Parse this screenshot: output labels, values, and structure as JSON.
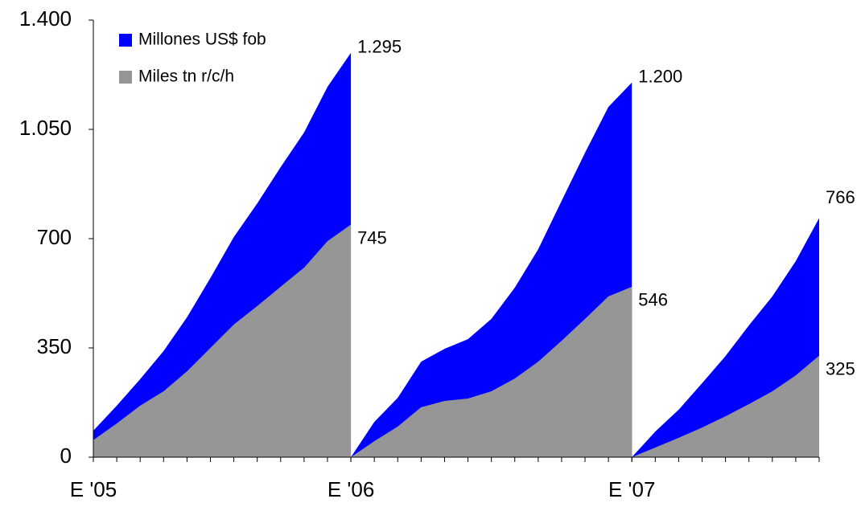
{
  "chart_data": {
    "type": "area",
    "x": [
      0,
      1,
      2,
      3,
      4,
      5,
      6,
      7,
      8,
      9,
      10,
      11,
      11,
      12,
      13,
      14,
      15,
      16,
      17,
      18,
      19,
      20,
      21,
      22,
      23,
      23,
      24,
      25,
      26,
      27,
      28,
      29,
      30,
      31
    ],
    "xlim": [
      0,
      31
    ],
    "xticks": [
      {
        "value": 0,
        "label": "E '05"
      },
      {
        "value": 11,
        "label": "E '06"
      },
      {
        "value": 23,
        "label": "E '07"
      }
    ],
    "ylim": [
      0,
      1400
    ],
    "yticks": [
      0,
      350,
      700,
      {
        "value": 1050,
        "label": "1.050"
      },
      {
        "value": 1400,
        "label": "1.400"
      }
    ],
    "legend": "top-left",
    "series": [
      {
        "name": "Millones US$ fob",
        "color": "#0000ff",
        "values": [
          85,
          165,
          250,
          340,
          448,
          574,
          705,
          813,
          929,
          1040,
          1186,
          1295,
          0,
          113,
          190,
          306,
          347,
          378,
          443,
          543,
          666,
          821,
          975,
          1122,
          1200,
          0,
          82,
          152,
          237,
          324,
          422,
          515,
          628,
          766
        ],
        "value_labels": [
          null,
          null,
          null,
          null,
          null,
          null,
          null,
          null,
          null,
          null,
          null,
          "1.295",
          null,
          null,
          null,
          null,
          null,
          null,
          null,
          null,
          null,
          null,
          null,
          null,
          "1.200",
          null,
          null,
          null,
          null,
          null,
          null,
          null,
          null,
          "766"
        ]
      },
      {
        "name": "Miles tn r/c/h",
        "color": "#969696",
        "values": [
          55,
          108,
          165,
          211,
          275,
          350,
          425,
          484,
          546,
          607,
          692,
          745,
          0,
          51,
          98,
          160,
          180,
          188,
          211,
          252,
          306,
          373,
          443,
          515,
          546,
          0,
          31,
          62,
          95,
          131,
          170,
          211,
          262,
          325
        ],
        "value_labels": [
          null,
          null,
          null,
          null,
          null,
          null,
          null,
          null,
          null,
          null,
          null,
          "745",
          null,
          null,
          null,
          null,
          null,
          null,
          null,
          null,
          null,
          null,
          null,
          null,
          "546",
          null,
          null,
          null,
          null,
          null,
          null,
          null,
          null,
          "325"
        ]
      }
    ]
  }
}
